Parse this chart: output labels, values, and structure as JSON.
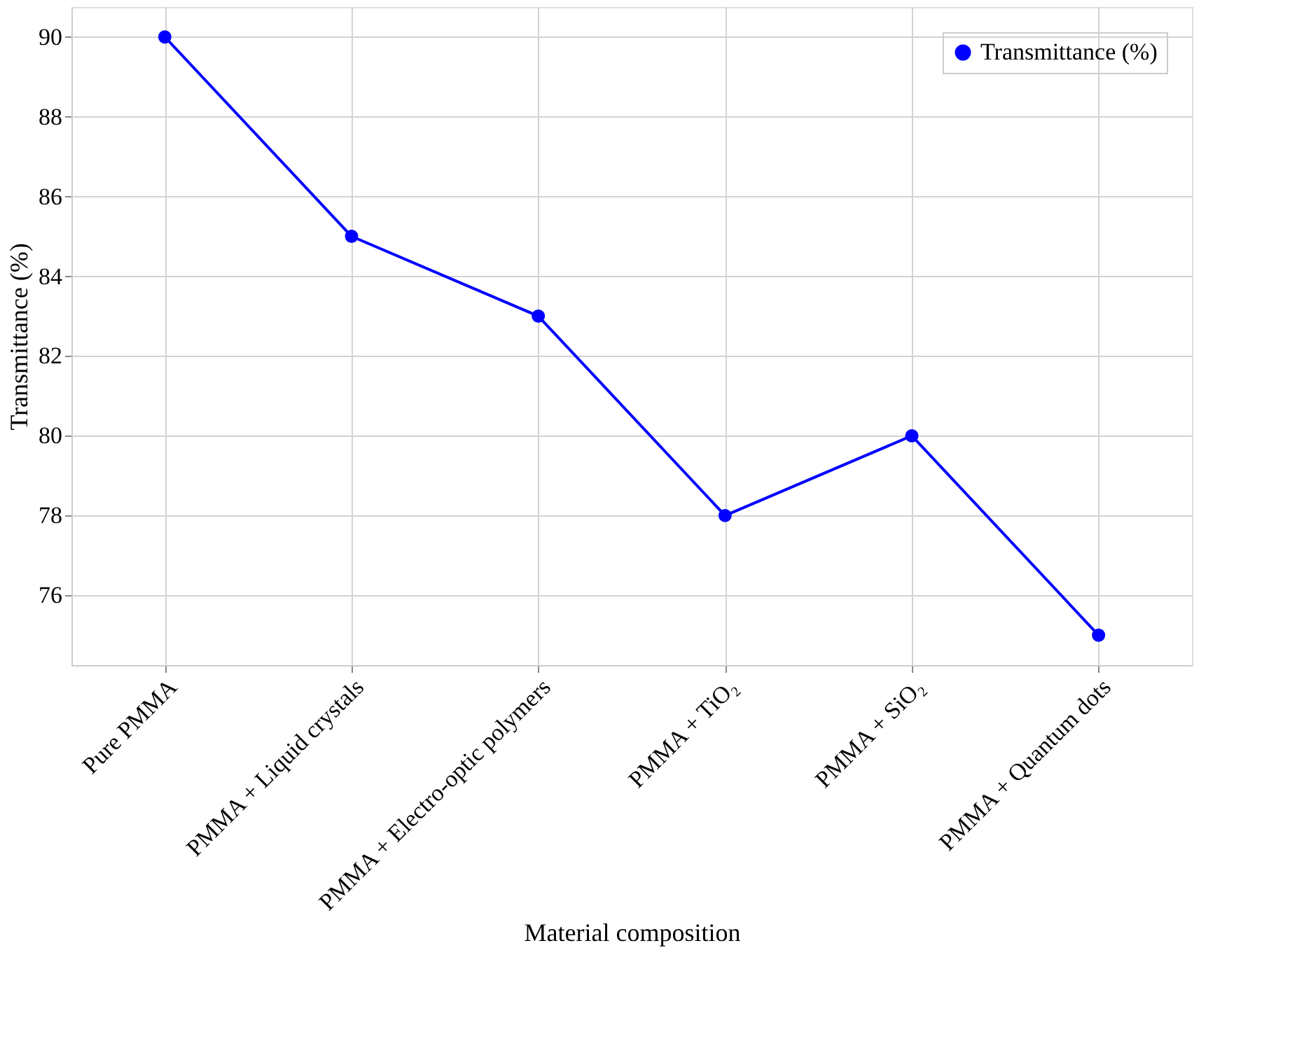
{
  "chart_data": {
    "type": "line",
    "xlabel": "Material composition",
    "ylabel": "Transmittance (%)",
    "categories": [
      "Pure PMMA",
      "PMMA + Liquid crystals",
      "PMMA + Electro-optic polymers",
      "PMMA + TiO₂",
      "PMMA + SiO₂",
      "PMMA + Quantum dots"
    ],
    "series": [
      {
        "name": "Transmittance (%)",
        "color": "#0000ff",
        "values": [
          90,
          85,
          83,
          78,
          80,
          75
        ]
      }
    ],
    "ylim": [
      74.25,
      90.75
    ],
    "yticks": [
      76,
      78,
      80,
      82,
      84,
      86,
      88,
      90
    ],
    "grid": true,
    "legend": "top right",
    "marker": "circle",
    "line_style": "solid"
  }
}
